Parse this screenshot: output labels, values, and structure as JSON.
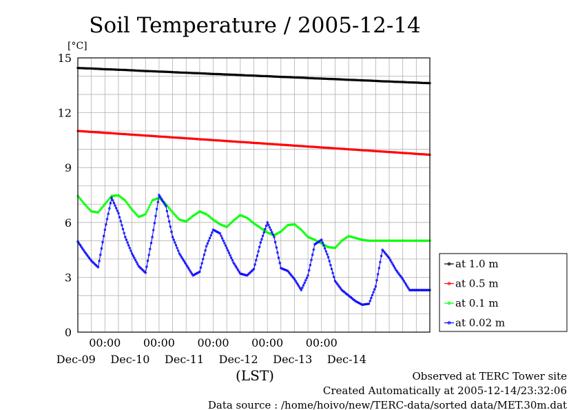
{
  "chart_data": {
    "type": "line",
    "title": "Soil Temperature / 2005-12-14",
    "ylabel": "[°C]",
    "xlabel": "(LST)",
    "ylim": [
      0,
      15
    ],
    "y_ticks": [
      0,
      3,
      6,
      9,
      12,
      15
    ],
    "x_range_days": [
      "2005-12-08 12:00",
      "2005-12-14 24:00"
    ],
    "x_ticks": [
      {
        "time": "00:00",
        "date": "Dec-09"
      },
      {
        "time": "00:00",
        "date": "Dec-10"
      },
      {
        "time": "00:00",
        "date": "Dec-11"
      },
      {
        "time": "00:00",
        "date": "Dec-12"
      },
      {
        "time": "00:00",
        "date": "Dec-13"
      },
      {
        "time": "",
        "date": "Dec-14"
      }
    ],
    "grid": true,
    "legend_position": "right",
    "x": [
      "12-08 12:00",
      "12-08 15:00",
      "12-08 18:00",
      "12-08 21:00",
      "12-09 00:00",
      "12-09 03:00",
      "12-09 06:00",
      "12-09 09:00",
      "12-09 12:00",
      "12-09 15:00",
      "12-09 18:00",
      "12-09 21:00",
      "12-10 00:00",
      "12-10 03:00",
      "12-10 06:00",
      "12-10 09:00",
      "12-10 12:00",
      "12-10 15:00",
      "12-10 18:00",
      "12-10 21:00",
      "12-11 00:00",
      "12-11 03:00",
      "12-11 06:00",
      "12-11 09:00",
      "12-11 12:00",
      "12-11 15:00",
      "12-11 18:00",
      "12-11 21:00",
      "12-12 00:00",
      "12-12 03:00",
      "12-12 06:00",
      "12-12 09:00",
      "12-12 12:00",
      "12-12 15:00",
      "12-12 18:00",
      "12-12 21:00",
      "12-13 00:00",
      "12-13 03:00",
      "12-13 06:00",
      "12-13 09:00",
      "12-13 12:00",
      "12-13 15:00",
      "12-13 18:00",
      "12-13 21:00",
      "12-14 00:00",
      "12-14 03:00",
      "12-14 06:00",
      "12-14 09:00",
      "12-14 12:00",
      "12-14 15:00",
      "12-14 18:00",
      "12-14 21:00",
      "12-14 24:00"
    ],
    "series": [
      {
        "name": "at 1.0 m",
        "color": "#000000",
        "values": [
          14.45,
          14.43,
          14.42,
          14.4,
          14.38,
          14.37,
          14.35,
          14.34,
          14.32,
          14.3,
          14.28,
          14.27,
          14.25,
          14.24,
          14.22,
          14.2,
          14.19,
          14.17,
          14.16,
          14.14,
          14.12,
          14.11,
          14.09,
          14.08,
          14.06,
          14.04,
          14.03,
          14.01,
          14.0,
          13.98,
          13.96,
          13.95,
          13.93,
          13.92,
          13.9,
          13.88,
          13.87,
          13.85,
          13.84,
          13.82,
          13.8,
          13.79,
          13.77,
          13.76,
          13.74,
          13.72,
          13.71,
          13.69,
          13.68,
          13.66,
          13.65,
          13.63,
          13.62
        ]
      },
      {
        "name": "at 0.5 m",
        "color": "#ff0000",
        "values": [
          11.0,
          10.98,
          10.95,
          10.93,
          10.9,
          10.88,
          10.85,
          10.83,
          10.8,
          10.78,
          10.75,
          10.73,
          10.7,
          10.68,
          10.65,
          10.63,
          10.6,
          10.58,
          10.55,
          10.53,
          10.5,
          10.48,
          10.45,
          10.43,
          10.4,
          10.38,
          10.35,
          10.33,
          10.3,
          10.28,
          10.25,
          10.23,
          10.2,
          10.18,
          10.15,
          10.13,
          10.1,
          10.08,
          10.05,
          10.03,
          10.0,
          9.98,
          9.95,
          9.93,
          9.9,
          9.88,
          9.85,
          9.83,
          9.8,
          9.78,
          9.75,
          9.73,
          9.7
        ]
      },
      {
        "name": "at 0.1 m",
        "color": "#00ff00",
        "values": [
          7.45,
          7.0,
          6.6,
          6.55,
          7.0,
          7.45,
          7.48,
          7.2,
          6.7,
          6.3,
          6.45,
          7.2,
          7.35,
          7.0,
          6.55,
          6.15,
          6.05,
          6.35,
          6.6,
          6.45,
          6.15,
          5.9,
          5.75,
          6.1,
          6.4,
          6.25,
          5.95,
          5.7,
          5.45,
          5.3,
          5.5,
          5.85,
          5.9,
          5.6,
          5.2,
          5.05,
          4.85,
          4.65,
          4.6,
          5.0,
          5.25,
          5.15,
          5.05,
          5.0,
          5.0,
          5.0,
          5.0,
          5.0,
          5.0,
          5.0,
          5.0,
          5.0,
          5.0
        ]
      },
      {
        "name": "at 0.02 m",
        "color": "#0000ff",
        "values": [
          4.95,
          4.4,
          3.9,
          3.55,
          5.6,
          7.35,
          6.5,
          5.2,
          4.3,
          3.6,
          3.25,
          5.2,
          7.5,
          6.9,
          5.2,
          4.3,
          3.7,
          3.1,
          3.3,
          4.7,
          5.6,
          5.4,
          4.6,
          3.8,
          3.2,
          3.1,
          3.45,
          4.9,
          6.0,
          5.2,
          3.5,
          3.35,
          2.9,
          2.3,
          3.1,
          4.8,
          5.05,
          4.1,
          2.8,
          2.3,
          2.0,
          1.7,
          1.5,
          1.55,
          2.5,
          4.5,
          4.05,
          3.4,
          2.9,
          2.3,
          2.3,
          2.3,
          2.3
        ]
      }
    ]
  },
  "footer": {
    "observed": "Observed at TERC Tower site",
    "created": "Created Automatically at 2005-12-14/23:32:06",
    "source": "Data source : /home/hoivo/new/TERC-data/sorted  data/MET.30m.dat"
  }
}
